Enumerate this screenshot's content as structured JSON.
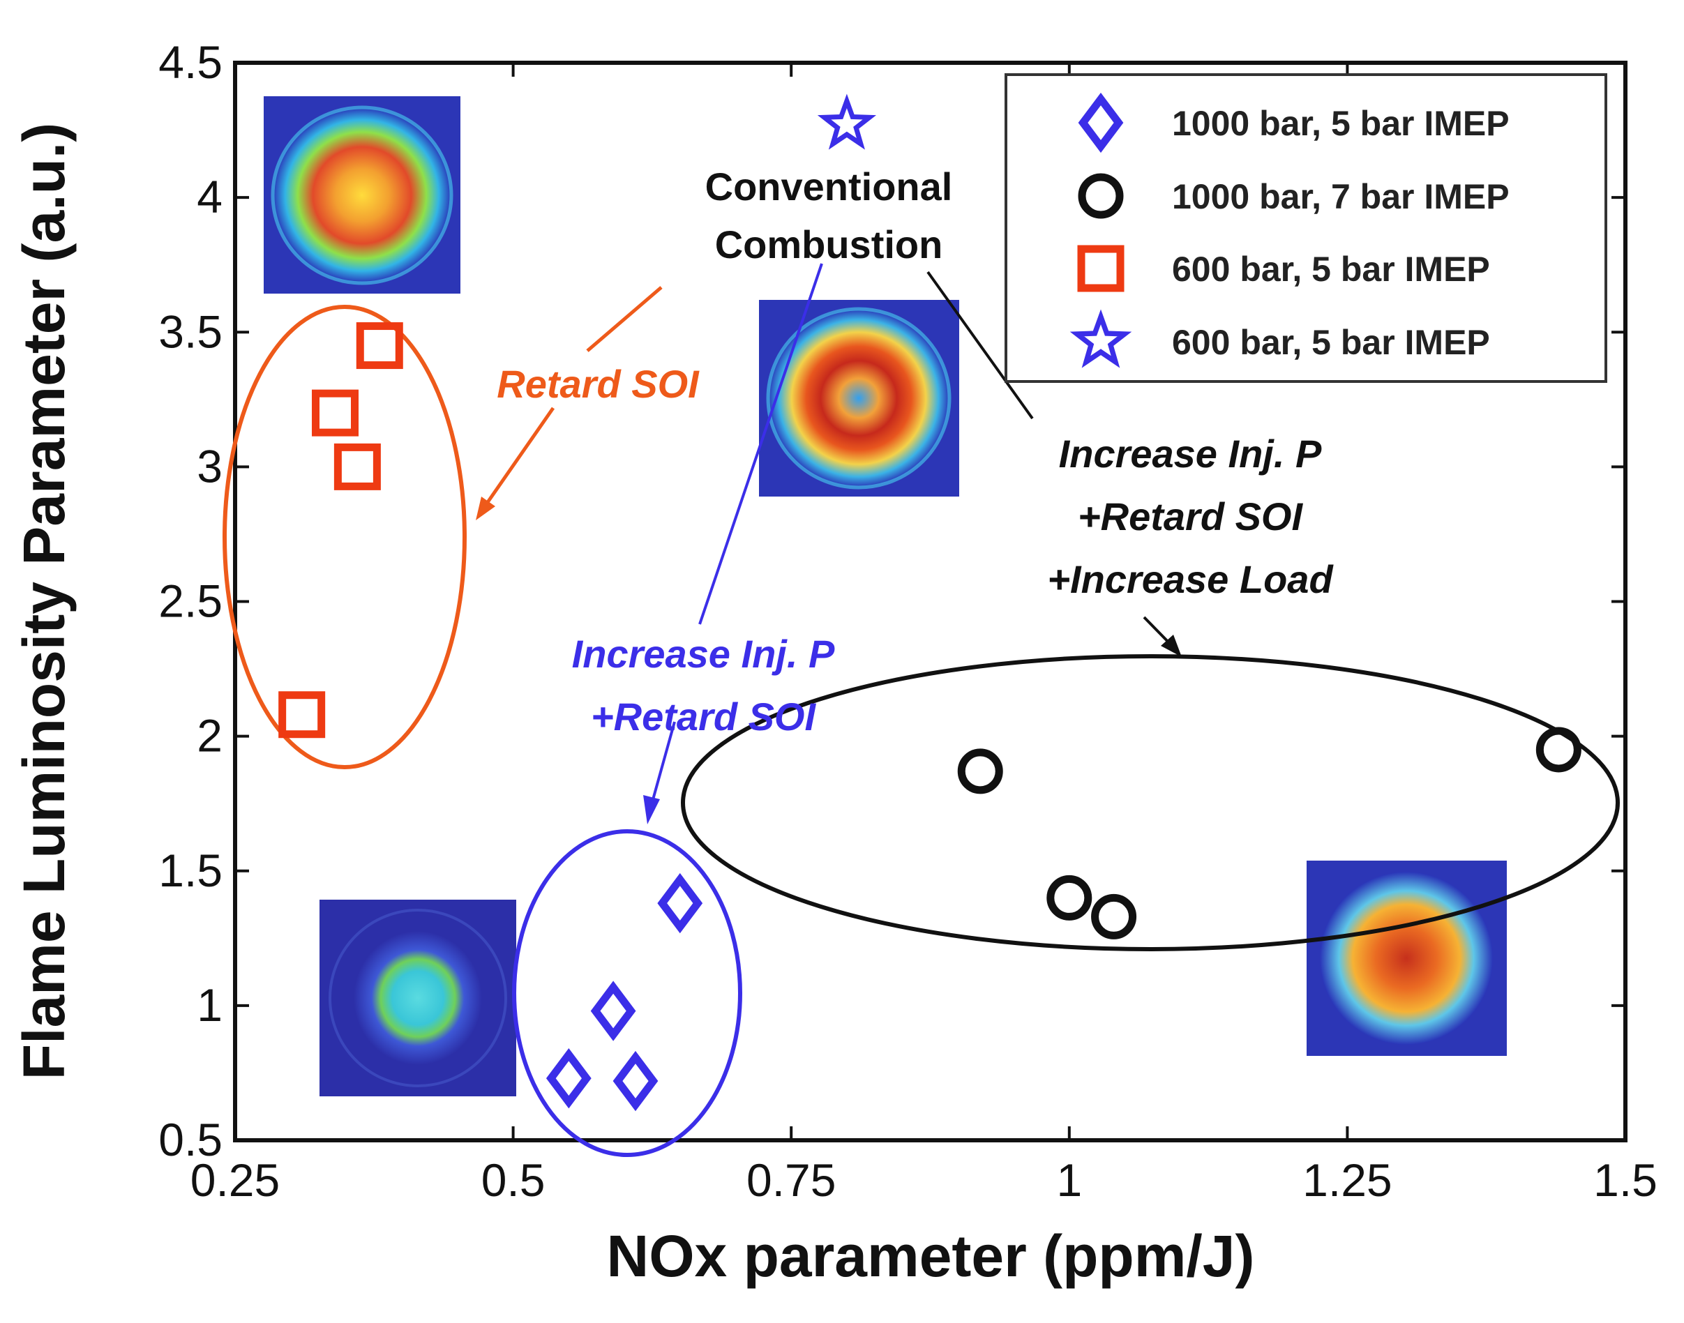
{
  "chart_data": {
    "type": "scatter",
    "title": "",
    "xlabel": "NOx parameter (ppm/J)",
    "ylabel": "Flame Luminosity Parameter (a.u.)",
    "xlim": [
      0.25,
      1.5
    ],
    "ylim": [
      0.5,
      4.5
    ],
    "xticks": [
      0.25,
      0.5,
      0.75,
      1,
      1.25,
      1.5
    ],
    "xtick_labels": [
      "0.25",
      "0.5",
      "0.75",
      "1",
      "1.25",
      "1.5"
    ],
    "yticks": [
      0.5,
      1,
      1.5,
      2,
      2.5,
      3,
      3.5,
      4,
      4.5
    ],
    "ytick_labels": [
      "0.5",
      "1",
      "1.5",
      "2",
      "2.5",
      "3",
      "3.5",
      "4",
      "4.5"
    ],
    "legend_position": "top-right",
    "series": [
      {
        "name": "1000 bar, 5 bar IMEP",
        "marker": "diamond",
        "color": "#3b2ee8",
        "x": [
          0.55,
          0.59,
          0.61,
          0.65
        ],
        "y": [
          0.73,
          0.98,
          0.72,
          1.38
        ]
      },
      {
        "name": "1000 bar, 7 bar IMEP",
        "marker": "circle",
        "color": "#111111",
        "x": [
          0.92,
          1.0,
          1.04,
          1.44
        ],
        "y": [
          1.87,
          1.4,
          1.33,
          1.95
        ]
      },
      {
        "name": "600 bar, 5 bar IMEP",
        "marker": "square",
        "color": "#ee3a12",
        "x": [
          0.31,
          0.34,
          0.36,
          0.38
        ],
        "y": [
          2.08,
          3.2,
          3.0,
          3.45
        ]
      },
      {
        "name": "600 bar, 5 bar IMEP",
        "marker": "star",
        "color": "#3b2ee8",
        "x": [
          0.8
        ],
        "y": [
          4.27
        ]
      }
    ],
    "annotations": {
      "conventional_line1": "Conventional",
      "conventional_line2": "Combustion",
      "retard_soi": "Retard SOI",
      "blue_line1": "Increase Inj. P",
      "blue_line2": "+Retard SOI",
      "black_line1": "Increase Inj. P",
      "black_line2": "+Retard SOI",
      "black_line3": "+Increase Load"
    }
  },
  "colors": {
    "orange": "#ee5a1a",
    "blue": "#3b2ee8",
    "black": "#111111"
  }
}
